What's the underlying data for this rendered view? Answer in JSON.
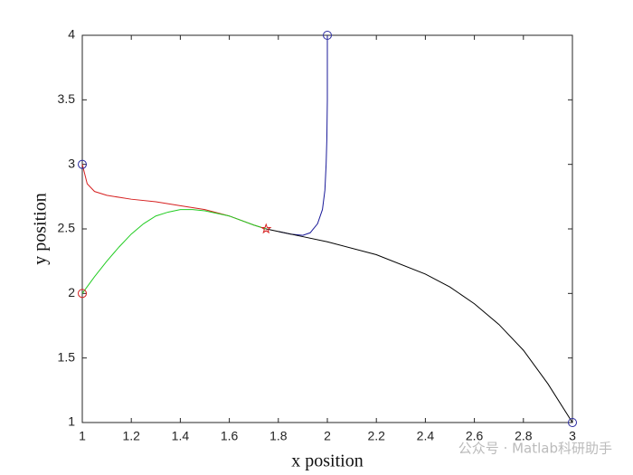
{
  "chart_data": {
    "type": "line",
    "xlabel": "x position",
    "ylabel": "y position",
    "xlim": [
      1,
      3
    ],
    "ylim": [
      1,
      4
    ],
    "xticks": [
      1,
      1.2,
      1.4,
      1.6,
      1.8,
      2,
      2.2,
      2.4,
      2.6,
      2.8,
      3
    ],
    "yticks": [
      1,
      1.5,
      2,
      2.5,
      3,
      3.5,
      4
    ],
    "series": [
      {
        "color": "#d62020",
        "x": [
          1,
          1.02,
          1.05,
          1.1,
          1.2,
          1.3,
          1.4,
          1.5,
          1.6,
          1.7,
          1.75
        ],
        "values": [
          3,
          2.85,
          2.79,
          2.76,
          2.73,
          2.71,
          2.68,
          2.65,
          2.6,
          2.53,
          2.5
        ]
      },
      {
        "color": "#22cc22",
        "x": [
          1,
          1.05,
          1.1,
          1.15,
          1.2,
          1.25,
          1.3,
          1.35,
          1.4,
          1.45,
          1.5,
          1.6,
          1.7,
          1.75
        ],
        "values": [
          2,
          2.13,
          2.25,
          2.36,
          2.46,
          2.54,
          2.6,
          2.63,
          2.65,
          2.65,
          2.64,
          2.6,
          2.53,
          2.5
        ]
      },
      {
        "color": "#1a1a99",
        "x": [
          2,
          2,
          1.998,
          1.995,
          1.99,
          1.98,
          1.96,
          1.93,
          1.9,
          1.85,
          1.8
        ],
        "values": [
          4,
          3.5,
          3.2,
          3.0,
          2.8,
          2.65,
          2.54,
          2.47,
          2.45,
          2.46,
          2.48
        ]
      },
      {
        "color": "#000000",
        "x": [
          1.75,
          1.8,
          1.9,
          2,
          2.2,
          2.4,
          2.5,
          2.6,
          2.7,
          2.8,
          2.9,
          3
        ],
        "values": [
          2.5,
          2.48,
          2.44,
          2.4,
          2.3,
          2.15,
          2.05,
          1.92,
          1.76,
          1.56,
          1.3,
          1
        ]
      }
    ],
    "markers": [
      {
        "symbol": "circle",
        "color": "#2a2aa0",
        "x": 1,
        "y": 3
      },
      {
        "symbol": "circle",
        "color": "#d62020",
        "x": 1,
        "y": 2
      },
      {
        "symbol": "circle",
        "color": "#2a2aa0",
        "x": 2,
        "y": 4
      },
      {
        "symbol": "circle",
        "color": "#2a2aa0",
        "x": 3,
        "y": 1
      },
      {
        "symbol": "star",
        "color": "#d62020",
        "x": 1.75,
        "y": 2.5
      }
    ],
    "watermark": "公众号 · Matlab科研助手"
  }
}
